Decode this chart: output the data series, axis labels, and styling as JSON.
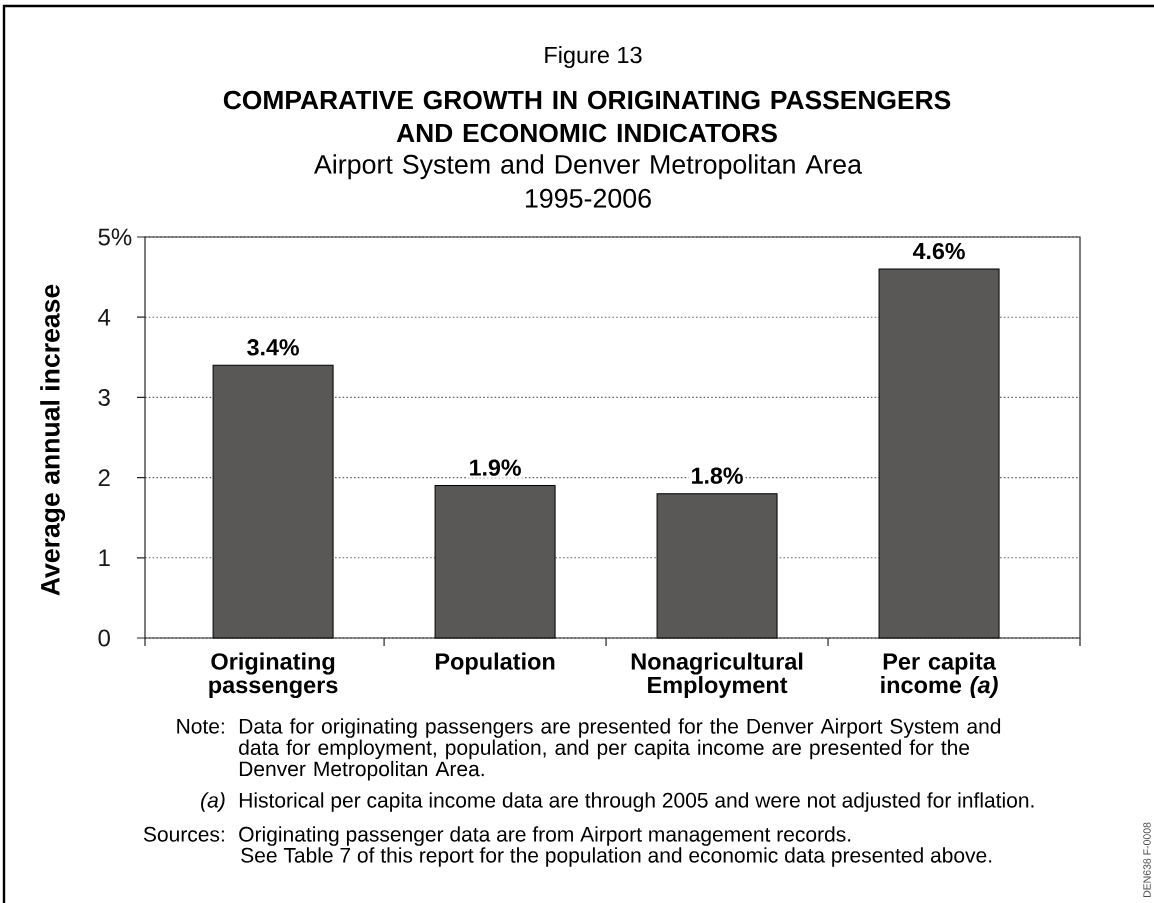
{
  "chart_data": {
    "type": "bar",
    "title": "COMPARATIVE GROWTH IN ORIGINATING PASSENGERS AND ECONOMIC INDICATORS",
    "subtitle": "Airport System and Denver Metropolitan Area 1995-2006",
    "ylabel": "Average annual increase",
    "categories": [
      "Originating passengers",
      "Population",
      "Nonagricultural Employment",
      "Per capita income *(a)*"
    ],
    "values": [
      3.4,
      1.9,
      1.8,
      4.6
    ],
    "color": "#595856",
    "value_labels": [
      "3.4%",
      "1.9%",
      "1.8%",
      "4.6%"
    ],
    "ylim": [
      0,
      5
    ],
    "yticks": [
      0,
      1,
      2,
      3,
      4,
      {
        "value": 5,
        "label": "5%"
      }
    ],
    "grid": "y",
    "annotations": [
      "Figure 13",
      "Note:",
      "Data for originating passengers are presented for the Denver Airport System and data for employment, population, and per capita income are presented for the Denver Metropolitan Area.",
      "(a)",
      "Historical per capita income data are through 2005 and were not adjusted for inflation.",
      "Sources:",
      "Originating passenger data are from Airport management records.",
      "See Table 7 of this report for the population and economic data presented above.",
      "DEN638 F-0008"
    ]
  }
}
